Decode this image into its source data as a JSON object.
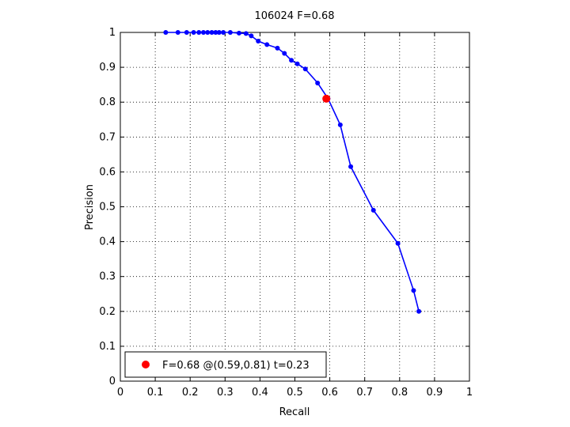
{
  "chart_data": {
    "type": "line",
    "title": "106024 F=0.68",
    "xlabel": "Recall",
    "ylabel": "Precision",
    "xlim": [
      0,
      1
    ],
    "ylim": [
      0,
      1
    ],
    "grid": true,
    "x_ticks": [
      "0",
      "0.1",
      "0.2",
      "0.3",
      "0.4",
      "0.5",
      "0.6",
      "0.7",
      "0.8",
      "0.9",
      "1"
    ],
    "y_ticks": [
      "0",
      "0.1",
      "0.2",
      "0.3",
      "0.4",
      "0.5",
      "0.6",
      "0.7",
      "0.8",
      "0.9",
      "1"
    ],
    "series": [
      {
        "color": "#0000ff",
        "x": [
          0.13,
          0.165,
          0.19,
          0.21,
          0.225,
          0.238,
          0.25,
          0.262,
          0.273,
          0.283,
          0.295,
          0.315,
          0.34,
          0.36,
          0.375,
          0.395,
          0.42,
          0.45,
          0.47,
          0.49,
          0.507,
          0.53,
          0.565,
          0.595,
          0.63,
          0.66,
          0.725,
          0.795,
          0.84,
          0.855
        ],
        "y": [
          1.0,
          1.0,
          1.0,
          1.0,
          1.0,
          1.0,
          1.0,
          1.0,
          1.0,
          1.0,
          1.0,
          1.0,
          0.998,
          0.997,
          0.99,
          0.975,
          0.965,
          0.955,
          0.94,
          0.92,
          0.91,
          0.895,
          0.855,
          0.81,
          0.735,
          0.615,
          0.49,
          0.395,
          0.26,
          0.2
        ]
      }
    ],
    "highlight": {
      "color": "#ff0000",
      "x": 0.59,
      "y": 0.81
    },
    "legend": {
      "label": "F=0.68 @(0.59,0.81) t=0.23",
      "placement": "bottom-left"
    }
  }
}
